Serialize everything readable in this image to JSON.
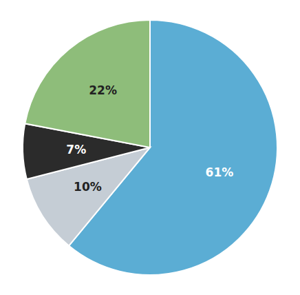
{
  "chart_data": {
    "type": "pie",
    "values": [
      61,
      10,
      7,
      22
    ],
    "value_labels": [
      "61%",
      "10%",
      "7%",
      "22%"
    ],
    "colors": [
      "#5BADD4",
      "#C5CDD5",
      "#2B2B2B",
      "#8EBD7A"
    ],
    "data_labels": true
  }
}
